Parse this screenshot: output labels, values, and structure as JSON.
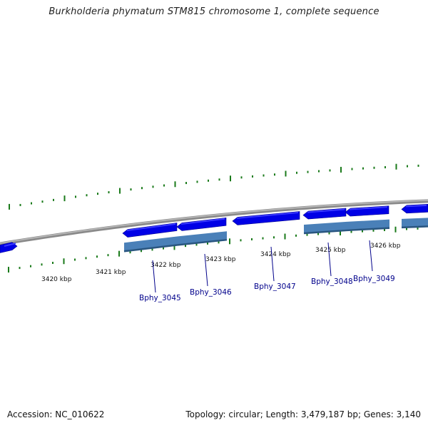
{
  "title": "Burkholderia phymatum STM815 chromosome 1, complete sequence",
  "accession_label": "Accession: NC_010622",
  "topology_label": "Topology: circular; Length: 3,479,187 bp; Genes: 3,140",
  "colors": {
    "gene": "#0000e6",
    "gene_light": "#3a3aff",
    "cds": "#4a80b8",
    "cds_dark": "#2a5680",
    "backbone": "#8a8a8a",
    "tick": "#1a7a1a",
    "label": "#00008b"
  },
  "scale_labels": [
    {
      "text": "3420 kbp"
    },
    {
      "text": "3421 kbp"
    },
    {
      "text": "3422 kbp"
    },
    {
      "text": "3423 kbp"
    },
    {
      "text": "3424 kbp"
    },
    {
      "text": "3425 kbp"
    },
    {
      "text": "3426 kbp"
    }
  ],
  "gene_labels": [
    {
      "text": "Bphy_3045"
    },
    {
      "text": "Bphy_3046"
    },
    {
      "text": "Bphy_3047"
    },
    {
      "text": "Bphy_3048"
    },
    {
      "text": "Bphy_3049"
    }
  ]
}
